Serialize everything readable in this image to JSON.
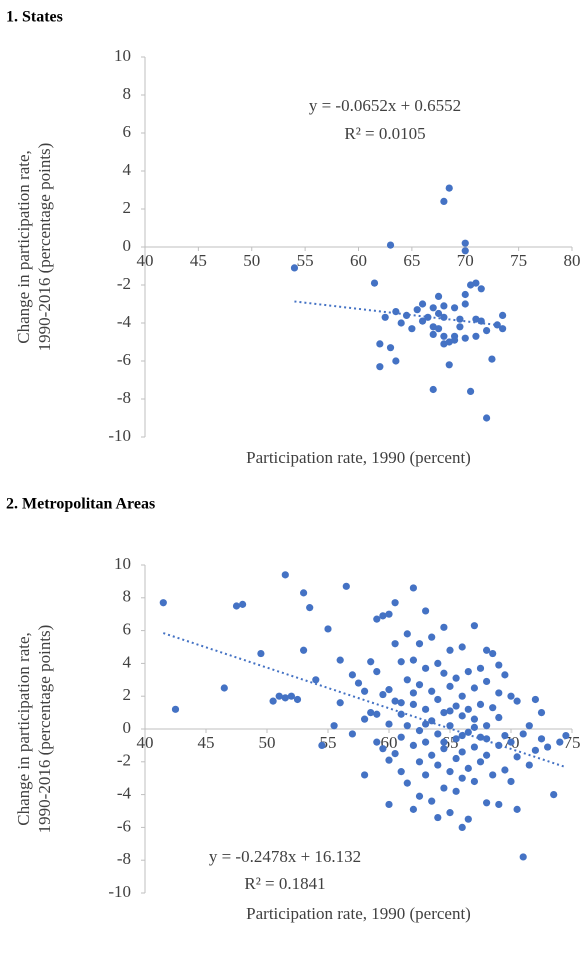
{
  "chart_data": [
    {
      "type": "scatter",
      "title": "1. States",
      "x_label": "Participation rate, 1990  (percent)",
      "y_label": [
        "Change in participation rate,",
        "1990-2016  (percentage points)"
      ],
      "annotations": [
        "y = -0.0652x + 0.6552",
        "R² = 0.0105"
      ],
      "color": "#4472c4",
      "xlim": [
        40,
        80
      ],
      "ylim": [
        -10,
        10
      ],
      "xticks": [
        40,
        45,
        50,
        55,
        60,
        65,
        70,
        75,
        80
      ],
      "yticks": [
        -10,
        -8,
        -6,
        -4,
        -2,
        0,
        2,
        4,
        6,
        8,
        10
      ],
      "trendline": {
        "x": [
          54,
          73
        ],
        "values": [
          -2.866,
          -4.104
        ]
      },
      "x": [
        54,
        61.5,
        63,
        62.5,
        62,
        62,
        63,
        63.5,
        63.5,
        64,
        64.5,
        65,
        65.5,
        66,
        66.5,
        67,
        67,
        67,
        67.5,
        67.5,
        67.5,
        68,
        68,
        68,
        68,
        68.5,
        68.5,
        68.5,
        69,
        69,
        69,
        69.5,
        69.5,
        70,
        70,
        70,
        70,
        70,
        70.5,
        70.5,
        71,
        71,
        71,
        71.5,
        71.5,
        72,
        72,
        72.5,
        73,
        73.5,
        73.5,
        66,
        67,
        68
      ],
      "values": [
        -1.1,
        -1.9,
        0.1,
        -3.7,
        -5.1,
        -6.3,
        -5.3,
        -6,
        -3.4,
        -4,
        -3.6,
        -4.3,
        -3.3,
        -3.9,
        -3.7,
        -3.2,
        -4.6,
        -7.5,
        -4.3,
        -2.6,
        -3.5,
        2.4,
        -3.1,
        -5.1,
        -3.7,
        -5,
        -6.2,
        3.1,
        -3.2,
        -4.7,
        -4.9,
        -3.8,
        -4.2,
        -0.2,
        0.2,
        -2.5,
        -3,
        -4.8,
        -2,
        -7.6,
        -1.9,
        -3.8,
        -4.7,
        -2.2,
        -3.9,
        -9,
        -4.4,
        -5.9,
        -4.1,
        -4.3,
        -3.6,
        -3,
        -4.2,
        -4.7
      ]
    },
    {
      "type": "scatter",
      "title": "2. Metropolitan  Areas",
      "x_label": "Participation rate, 1990  (percent)",
      "y_label": [
        "Change in participation rate,",
        "1990-2016  (percentage points)"
      ],
      "annotations": [
        "y = -0.2478x + 16.132",
        "R² = 0.1841"
      ],
      "color": "#4472c4",
      "xlim": [
        40,
        75
      ],
      "ylim": [
        -10,
        10
      ],
      "xticks": [
        40,
        45,
        50,
        55,
        60,
        65,
        70,
        75
      ],
      "yticks": [
        -10,
        -8,
        -6,
        -4,
        -2,
        0,
        2,
        4,
        6,
        8,
        10
      ],
      "trendline": {
        "x": [
          41.5,
          74.5
        ],
        "values": [
          5.848,
          -2.329
        ]
      },
      "x": [
        41.5,
        42.5,
        46.5,
        47.5,
        48,
        49.5,
        50.5,
        51,
        51.5,
        51.5,
        52,
        52.5,
        53,
        53,
        53.5,
        54,
        54.5,
        55,
        55.5,
        56,
        56,
        56.5,
        57,
        57,
        57.5,
        58,
        58,
        58.5,
        58.5,
        59,
        59,
        59,
        59.5,
        59.5,
        59.5,
        60,
        60,
        60,
        60,
        60.5,
        60.5,
        60.5,
        60.5,
        61,
        61,
        61,
        61,
        61.5,
        61.5,
        61.5,
        61.5,
        62,
        62,
        62,
        62,
        62,
        62.5,
        62.5,
        62.5,
        62.5,
        62.5,
        63,
        63,
        63,
        63,
        63,
        63.5,
        63.5,
        63.5,
        63.5,
        63.5,
        64,
        64,
        64,
        64,
        64,
        64.5,
        64.5,
        64.5,
        64.5,
        64.5,
        65,
        65,
        65,
        65,
        65,
        65.5,
        65.5,
        65.5,
        65.5,
        65.5,
        66,
        66,
        66,
        66,
        66,
        66,
        66.5,
        66.5,
        66.5,
        66.5,
        66.5,
        67,
        67,
        67,
        67,
        67,
        67.5,
        67.5,
        67.5,
        67.5,
        68,
        68,
        68,
        68,
        68,
        68.5,
        68.5,
        68.5,
        69,
        69,
        69,
        69,
        69.5,
        69.5,
        69.5,
        70,
        70,
        70,
        70.5,
        70.5,
        70.5,
        71,
        71,
        71.5,
        71.5,
        72,
        72,
        72.5,
        72.5,
        73,
        73.5,
        74,
        74.5,
        64.5,
        63,
        62,
        61,
        60,
        65,
        66,
        67,
        68,
        69,
        59,
        58
      ],
      "values": [
        7.7,
        1.2,
        2.5,
        7.5,
        7.6,
        4.6,
        1.7,
        2,
        9.4,
        1.9,
        2,
        1.8,
        8.3,
        4.8,
        7.4,
        3,
        -1,
        6.1,
        0.2,
        4.2,
        1.6,
        8.7,
        3.3,
        -0.3,
        2.8,
        0.6,
        -2.8,
        4.1,
        1,
        6.7,
        3.5,
        -0.8,
        6.9,
        2.1,
        -1.2,
        7,
        2.4,
        0.3,
        -4.6,
        7.7,
        5.2,
        1.7,
        -1.5,
        4.1,
        0.9,
        -0.5,
        -2.6,
        5.8,
        3,
        0.2,
        -3.3,
        8.6,
        4.2,
        1.5,
        -1,
        -4.9,
        5.2,
        2.7,
        -0.1,
        -2,
        -4.1,
        7.2,
        3.7,
        1.2,
        -0.8,
        -2.8,
        5.6,
        2.3,
        0.5,
        -1.6,
        -4.4,
        4,
        1.8,
        -0.3,
        -2.2,
        -5.4,
        6.2,
        3.4,
        1,
        -1.2,
        -3.6,
        4.8,
        2.6,
        0.2,
        -2.6,
        -5.1,
        3.1,
        1.4,
        -0.6,
        -1.8,
        -3.8,
        5,
        2,
        0.8,
        -1.4,
        -3,
        -6,
        3.5,
        1.2,
        -0.2,
        -2.4,
        -5.5,
        6.3,
        2.5,
        0.6,
        -1.1,
        -3.2,
        3.7,
        1.5,
        -0.5,
        -2,
        4.8,
        2.9,
        0.2,
        -1.6,
        -4.5,
        4.6,
        1.3,
        -2.8,
        3.9,
        0.7,
        -1,
        -4.6,
        3.3,
        -0.4,
        -2.5,
        2,
        -0.8,
        -3.2,
        1.7,
        -1.7,
        -4.9,
        -7.8,
        -0.3,
        0.2,
        -2.2,
        1.8,
        -1.3,
        1,
        -0.6,
        -1.1,
        -4,
        -0.8,
        -0.4,
        -0.8,
        0.3,
        2.2,
        1.6,
        -1.9,
        1.1,
        -0.4,
        0.1,
        -0.6,
        2.2,
        0.9,
        2.3
      ]
    }
  ]
}
